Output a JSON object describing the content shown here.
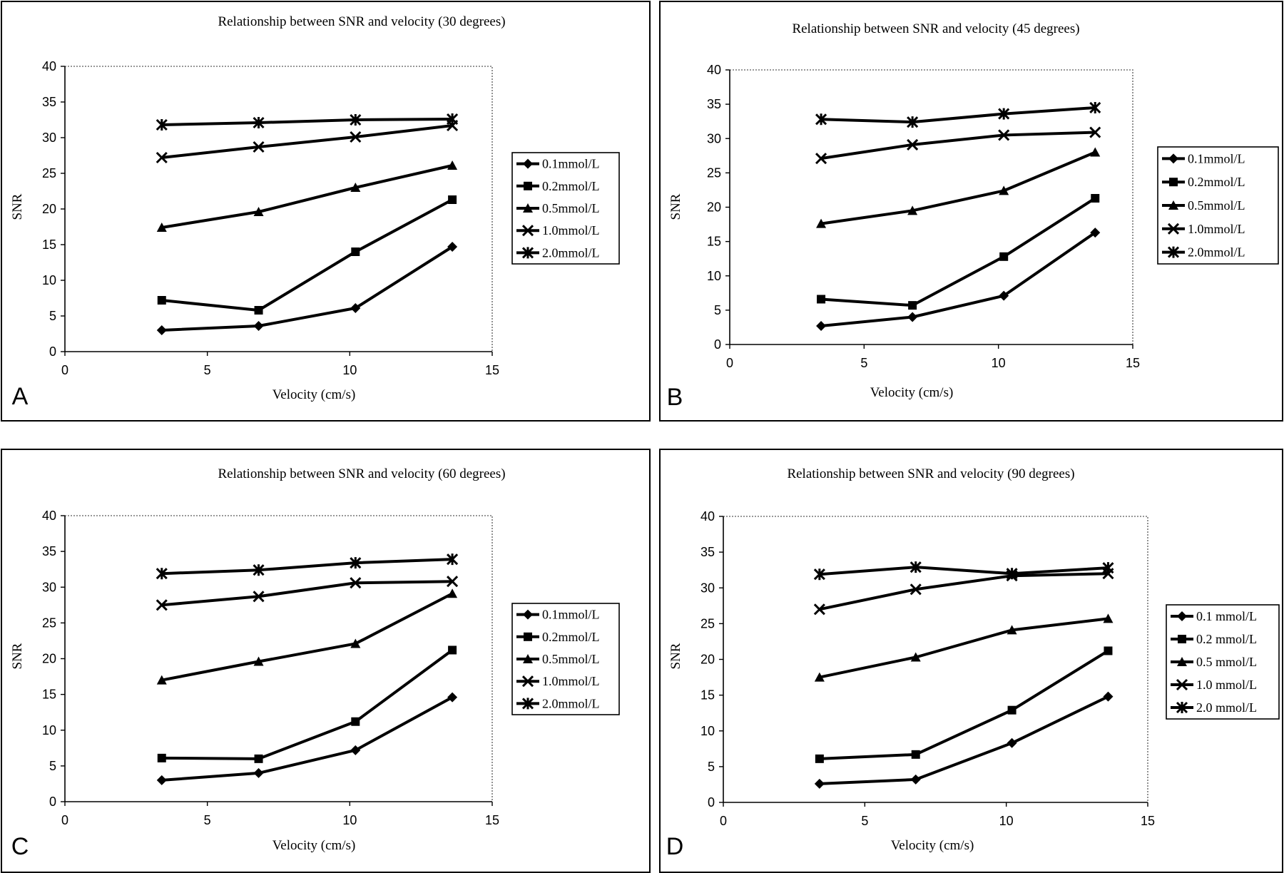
{
  "chart_data": [
    {
      "type": "line",
      "panel_label": "A",
      "title": "Relationship between SNR and velocity (30 degrees)",
      "xlabel": "Velocity (cm/s)",
      "ylabel": "SNR",
      "xlim": [
        0,
        15
      ],
      "ylim": [
        0,
        40
      ],
      "x_ticks": [
        "0",
        "5",
        "10",
        "15"
      ],
      "y_ticks": [
        "0",
        "5",
        "10",
        "15",
        "20",
        "25",
        "30",
        "35",
        "40"
      ],
      "legend_position": "right",
      "x": [
        3.4,
        6.8,
        10.2,
        13.6
      ],
      "series": [
        {
          "name": "0.1mmol/L",
          "marker": "diamond",
          "values": [
            3.0,
            3.6,
            6.1,
            14.7
          ]
        },
        {
          "name": "0.2mmol/L",
          "marker": "square",
          "values": [
            7.2,
            5.8,
            14.0,
            21.3
          ]
        },
        {
          "name": "0.5mmol/L",
          "marker": "triangle",
          "values": [
            17.4,
            19.6,
            23.0,
            26.1
          ]
        },
        {
          "name": "1.0mmol/L",
          "marker": "x",
          "values": [
            27.2,
            28.7,
            30.1,
            31.7
          ]
        },
        {
          "name": "2.0mmol/L",
          "marker": "star",
          "values": [
            31.8,
            32.1,
            32.5,
            32.6
          ]
        }
      ]
    },
    {
      "type": "line",
      "panel_label": "B",
      "title": "Relationship between SNR and velocity (45 degrees)",
      "xlabel": "Velocity (cm/s)",
      "ylabel": "SNR",
      "xlim": [
        0,
        15
      ],
      "ylim": [
        0,
        40
      ],
      "x_ticks": [
        "0",
        "5",
        "10",
        "15"
      ],
      "y_ticks": [
        "0",
        "5",
        "10",
        "15",
        "20",
        "25",
        "30",
        "35",
        "40"
      ],
      "legend_position": "right",
      "x": [
        3.4,
        6.8,
        10.2,
        13.6
      ],
      "series": [
        {
          "name": "0.1mmol/L",
          "marker": "diamond",
          "values": [
            2.7,
            4.0,
            7.1,
            16.3
          ]
        },
        {
          "name": "0.2mmol/L",
          "marker": "square",
          "values": [
            6.6,
            5.7,
            12.8,
            21.3
          ]
        },
        {
          "name": "0.5mmol/L",
          "marker": "triangle",
          "values": [
            17.6,
            19.5,
            22.4,
            28.0
          ]
        },
        {
          "name": "1.0mmol/L",
          "marker": "x",
          "values": [
            27.1,
            29.1,
            30.5,
            30.9
          ]
        },
        {
          "name": "2.0mmol/L",
          "marker": "star",
          "values": [
            32.8,
            32.4,
            33.6,
            34.5
          ]
        }
      ]
    },
    {
      "type": "line",
      "panel_label": "C",
      "title": "Relationship between SNR and velocity (60 degrees)",
      "xlabel": "Velocity (cm/s)",
      "ylabel": "SNR",
      "xlim": [
        0,
        15
      ],
      "ylim": [
        0,
        40
      ],
      "x_ticks": [
        "0",
        "5",
        "10",
        "15"
      ],
      "y_ticks": [
        "0",
        "5",
        "10",
        "15",
        "20",
        "25",
        "30",
        "35",
        "40"
      ],
      "legend_position": "right",
      "x": [
        3.4,
        6.8,
        10.2,
        13.6
      ],
      "series": [
        {
          "name": "0.1mmol/L",
          "marker": "diamond",
          "values": [
            3.0,
            4.0,
            7.2,
            14.6
          ]
        },
        {
          "name": "0.2mmol/L",
          "marker": "square",
          "values": [
            6.1,
            6.0,
            11.2,
            21.2
          ]
        },
        {
          "name": "0.5mmol/L",
          "marker": "triangle",
          "values": [
            17.0,
            19.6,
            22.1,
            29.1
          ]
        },
        {
          "name": "1.0mmol/L",
          "marker": "x",
          "values": [
            27.5,
            28.7,
            30.6,
            30.8
          ]
        },
        {
          "name": "2.0mmol/L",
          "marker": "star",
          "values": [
            31.9,
            32.4,
            33.4,
            33.9
          ]
        }
      ]
    },
    {
      "type": "line",
      "panel_label": "D",
      "title": "Relationship between SNR and velocity (90 degrees)",
      "xlabel": "Velocity (cm/s)",
      "ylabel": "SNR",
      "xlim": [
        0,
        15
      ],
      "ylim": [
        0,
        40
      ],
      "x_ticks": [
        "0",
        "5",
        "10",
        "15"
      ],
      "y_ticks": [
        "0",
        "5",
        "10",
        "15",
        "20",
        "25",
        "30",
        "35",
        "40"
      ],
      "legend_position": "right",
      "x": [
        3.4,
        6.8,
        10.2,
        13.6
      ],
      "series": [
        {
          "name": "0.1 mmol/L",
          "marker": "diamond",
          "values": [
            2.6,
            3.2,
            8.3,
            14.8
          ]
        },
        {
          "name": "0.2 mmol/L",
          "marker": "square",
          "values": [
            6.1,
            6.7,
            12.9,
            21.2
          ]
        },
        {
          "name": "0.5 mmol/L",
          "marker": "triangle",
          "values": [
            17.5,
            20.3,
            24.1,
            25.7
          ]
        },
        {
          "name": "1.0 mmol/L",
          "marker": "x",
          "values": [
            27.0,
            29.8,
            31.7,
            32.0
          ]
        },
        {
          "name": "2.0 mmol/L",
          "marker": "star",
          "values": [
            31.9,
            32.9,
            32.0,
            32.8
          ]
        }
      ]
    }
  ]
}
